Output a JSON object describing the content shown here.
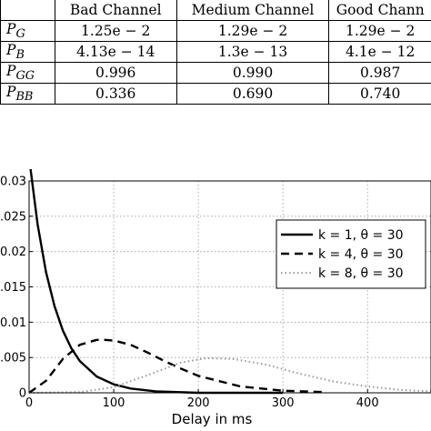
{
  "table": {
    "columns": [
      "",
      "Bad Channel",
      "Medium Channel",
      "Good Chann"
    ],
    "rows": [
      {
        "sym": "P",
        "sub": "G",
        "values": [
          "1.25e − 2",
          "1.29e − 2",
          "1.29e − 2"
        ]
      },
      {
        "sym": "P",
        "sub": "B",
        "values": [
          "4.13e − 14",
          "1.3e − 13",
          "4.1e − 12"
        ]
      },
      {
        "sym": "P",
        "sub": "GG",
        "values": [
          "0.996",
          "0.990",
          "0.987"
        ]
      },
      {
        "sym": "P",
        "sub": "BB",
        "values": [
          "0.336",
          "0.690",
          "0.740"
        ]
      }
    ]
  },
  "chart_data": {
    "type": "line",
    "xlabel": "Delay in ms",
    "ylabel": "",
    "xlim": [
      0,
      475
    ],
    "ylim": [
      0,
      0.03
    ],
    "xticks": [
      "0",
      "100",
      "200",
      "300",
      "400"
    ],
    "yticks": [
      "0",
      ".005",
      "0.01",
      ".015",
      "0.02",
      ".025",
      "0.03"
    ],
    "grid": true,
    "legend_position": "right",
    "series": [
      {
        "name": "k = 1, θ = 30",
        "style": "solid",
        "color": "#000000",
        "x": [
          0,
          10,
          20,
          30,
          40,
          50,
          60,
          80,
          100,
          120,
          150,
          200,
          250,
          300
        ],
        "y": [
          0.0333,
          0.0239,
          0.0171,
          0.0123,
          0.0088,
          0.0063,
          0.0045,
          0.0023,
          0.0012,
          0.0006,
          0.0002,
          0.0,
          0.0,
          0.0
        ]
      },
      {
        "name": "k = 4, θ = 30",
        "style": "dashed",
        "color": "#000000",
        "x": [
          0,
          20,
          40,
          60,
          80,
          90,
          100,
          120,
          140,
          160,
          180,
          200,
          250,
          300,
          350
        ],
        "y": [
          0.0,
          0.0017,
          0.0048,
          0.0068,
          0.0075,
          0.0075,
          0.0074,
          0.0068,
          0.0057,
          0.0045,
          0.0034,
          0.0024,
          0.0009,
          0.0003,
          0.0001
        ]
      },
      {
        "name": "k = 8, θ = 30",
        "style": "dotted",
        "color": "#999999",
        "x": [
          0,
          60,
          100,
          140,
          180,
          210,
          240,
          280,
          320,
          360,
          400,
          440,
          475
        ],
        "y": [
          0.0,
          0.0001,
          0.0008,
          0.0025,
          0.0043,
          0.0049,
          0.0048,
          0.004,
          0.0027,
          0.0016,
          0.0009,
          0.0004,
          0.0002
        ]
      }
    ]
  }
}
